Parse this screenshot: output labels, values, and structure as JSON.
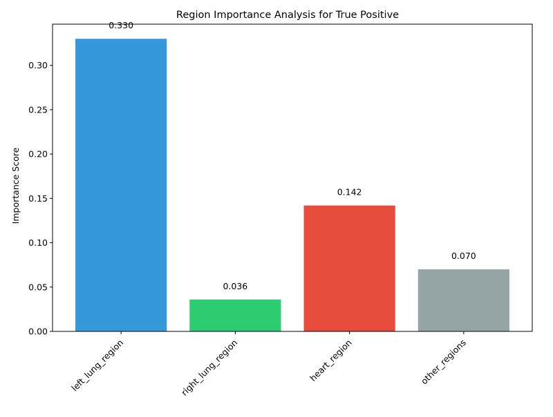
{
  "chart_data": {
    "type": "bar",
    "title": "Region Importance Analysis for True Positive",
    "xlabel": "",
    "ylabel": "Importance Score",
    "categories": [
      "left_lung_region",
      "right_lung_region",
      "heart_region",
      "other_regions"
    ],
    "values": [
      0.33,
      0.036,
      0.142,
      0.07
    ],
    "value_labels": [
      "0.330",
      "0.036",
      "0.142",
      "0.070"
    ],
    "colors": [
      "#3498db",
      "#2ecc71",
      "#e74c3c",
      "#95a5a6"
    ],
    "ylim": [
      0,
      0.3465
    ],
    "yticks": [
      0.0,
      0.05,
      0.1,
      0.15,
      0.2,
      0.25,
      0.3
    ],
    "ytick_labels": [
      "0.00",
      "0.05",
      "0.10",
      "0.15",
      "0.20",
      "0.25",
      "0.30"
    ],
    "grid": false,
    "legend": "none"
  }
}
